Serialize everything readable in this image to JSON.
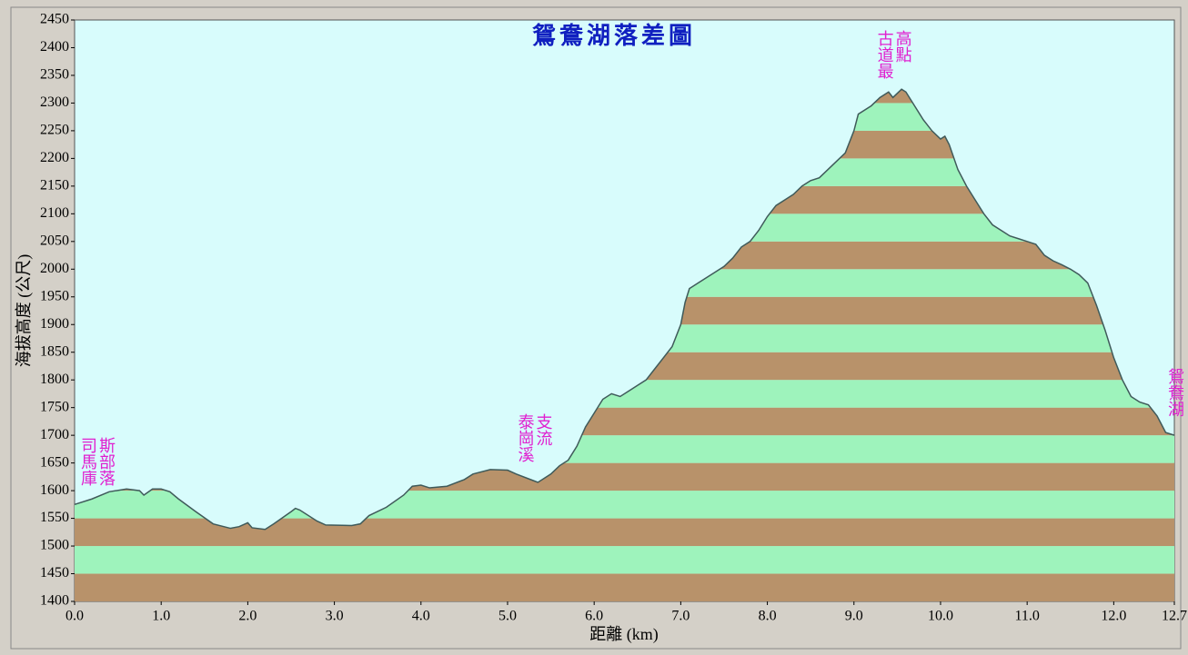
{
  "chart_data": {
    "type": "area",
    "title": "鴛鴦湖落差圖",
    "x_label": "距離 (km)",
    "y_label": "海拔高度 (公尺)",
    "annotations": [
      {
        "text": "司馬庫斯部落",
        "x": 0.0
      },
      {
        "text": "泰崗溪支流",
        "x": 5.3
      },
      {
        "text": "古道最高點",
        "x": 9.45
      },
      {
        "text": "鴛鴦湖",
        "x": 12.7
      }
    ],
    "x": [
      0.0,
      0.2,
      0.4,
      0.6,
      0.75,
      0.8,
      0.9,
      1.0,
      1.1,
      1.2,
      1.4,
      1.6,
      1.8,
      1.9,
      2.0,
      2.05,
      2.2,
      2.3,
      2.5,
      2.55,
      2.6,
      2.8,
      2.9,
      3.2,
      3.3,
      3.4,
      3.6,
      3.8,
      3.9,
      4.0,
      4.1,
      4.3,
      4.5,
      4.6,
      4.8,
      5.0,
      5.1,
      5.3,
      5.35,
      5.5,
      5.6,
      5.7,
      5.8,
      5.9,
      6.0,
      6.1,
      6.2,
      6.3,
      6.4,
      6.5,
      6.6,
      6.7,
      6.8,
      6.9,
      7.0,
      7.05,
      7.1,
      7.2,
      7.4,
      7.5,
      7.6,
      7.7,
      7.8,
      7.9,
      8.0,
      8.1,
      8.2,
      8.3,
      8.4,
      8.5,
      8.6,
      8.7,
      8.8,
      8.9,
      9.0,
      9.05,
      9.2,
      9.3,
      9.4,
      9.45,
      9.55,
      9.6,
      9.7,
      9.8,
      9.9,
      10.0,
      10.05,
      10.1,
      10.2,
      10.3,
      10.4,
      10.5,
      10.6,
      10.8,
      10.9,
      11.0,
      11.1,
      11.2,
      11.3,
      11.4,
      11.5,
      11.6,
      11.7,
      11.8,
      11.9,
      12.0,
      12.1,
      12.2,
      12.3,
      12.4,
      12.5,
      12.6,
      12.7
    ],
    "values": [
      1575,
      1585,
      1598,
      1603,
      1600,
      1592,
      1603,
      1603,
      1598,
      1585,
      1562,
      1540,
      1532,
      1535,
      1542,
      1533,
      1530,
      1540,
      1562,
      1568,
      1565,
      1545,
      1538,
      1537,
      1540,
      1555,
      1570,
      1592,
      1608,
      1610,
      1605,
      1608,
      1620,
      1630,
      1638,
      1637,
      1630,
      1618,
      1615,
      1630,
      1645,
      1655,
      1680,
      1715,
      1740,
      1765,
      1775,
      1770,
      1780,
      1790,
      1800,
      1820,
      1840,
      1860,
      1900,
      1940,
      1965,
      1975,
      1995,
      2005,
      2020,
      2040,
      2050,
      2070,
      2095,
      2115,
      2125,
      2135,
      2150,
      2160,
      2165,
      2180,
      2195,
      2210,
      2250,
      2280,
      2295,
      2310,
      2320,
      2310,
      2325,
      2320,
      2295,
      2270,
      2250,
      2235,
      2240,
      2225,
      2180,
      2150,
      2125,
      2100,
      2080,
      2060,
      2055,
      2050,
      2045,
      2025,
      2015,
      2008,
      2000,
      1990,
      1975,
      1935,
      1890,
      1840,
      1800,
      1770,
      1760,
      1755,
      1735,
      1705,
      1700
    ],
    "line_color": "#3f5a5a",
    "band_colors": [
      "#b8926a",
      "#9ef3bc"
    ],
    "background": "#d8fcfc",
    "xlim": [
      0,
      12.7
    ],
    "ylim": [
      1400,
      2450
    ],
    "xticks": [
      {
        "value": 0,
        "label": "0.0"
      },
      {
        "value": 1,
        "label": "1.0"
      },
      {
        "value": 2,
        "label": "2.0"
      },
      {
        "value": 3,
        "label": "3.0"
      },
      {
        "value": 4,
        "label": "4.0"
      },
      {
        "value": 5,
        "label": "5.0"
      },
      {
        "value": 6,
        "label": "6.0"
      },
      {
        "value": 7,
        "label": "7.0"
      },
      {
        "value": 8,
        "label": "8.0"
      },
      {
        "value": 9,
        "label": "9.0"
      },
      {
        "value": 10,
        "label": "10.0"
      },
      {
        "value": 11,
        "label": "11.0"
      },
      {
        "value": 12,
        "label": "12.0"
      },
      {
        "value": 12.7,
        "label": "12.7"
      }
    ],
    "yticks": [
      1400,
      1450,
      1500,
      1550,
      1600,
      1650,
      1700,
      1750,
      1800,
      1850,
      1900,
      1950,
      2000,
      2050,
      2100,
      2150,
      2200,
      2250,
      2300,
      2350,
      2400,
      2450
    ]
  }
}
